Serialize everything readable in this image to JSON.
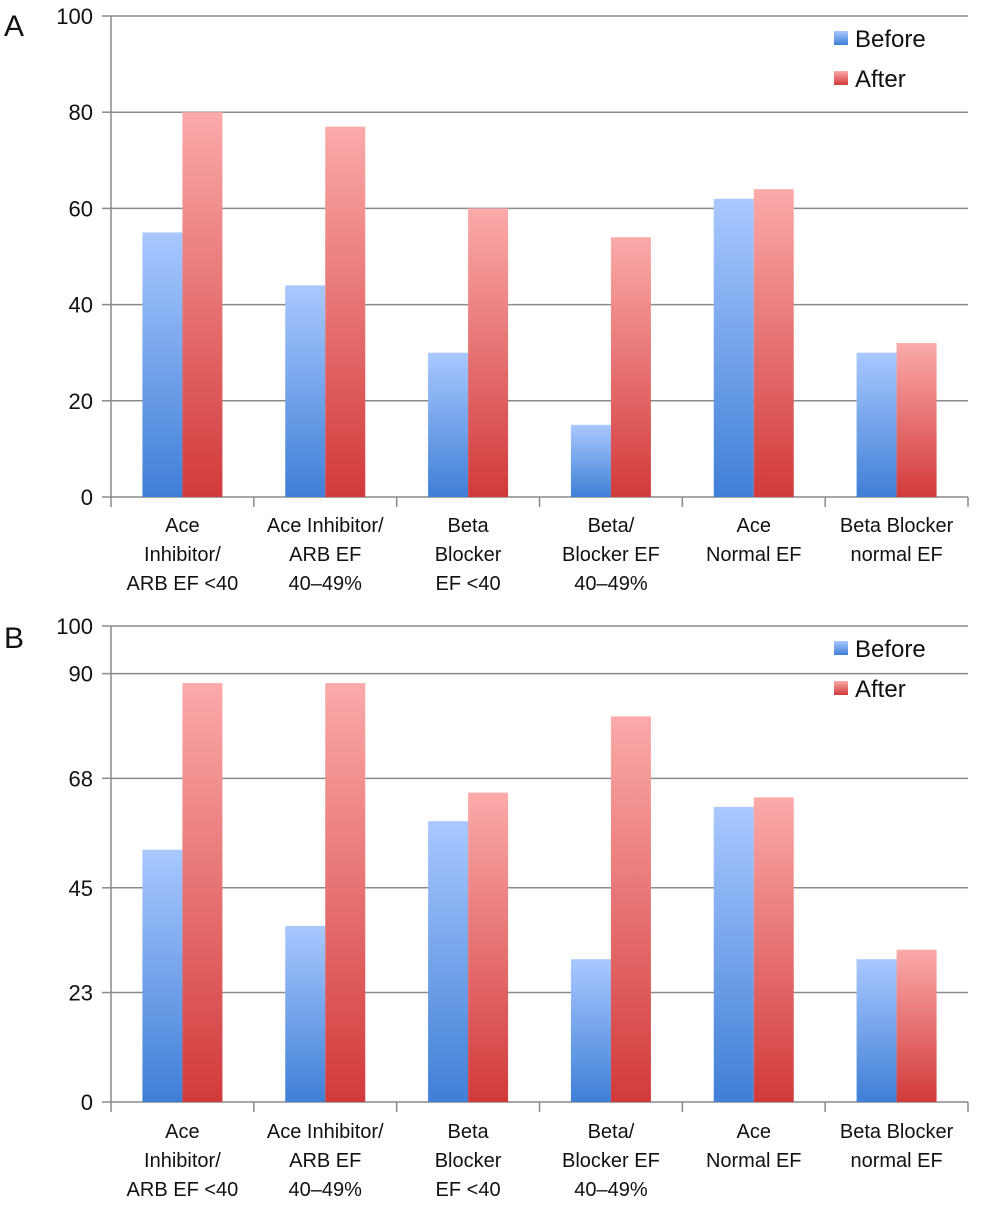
{
  "chart_data": [
    {
      "panel": "A",
      "type": "bar",
      "categories": [
        [
          "Ace",
          "Inhibitor/",
          "ARB EF <40"
        ],
        [
          "Ace Inhibitor/",
          "ARB EF",
          "40–49%"
        ],
        [
          "Beta",
          "Blocker",
          "EF <40"
        ],
        [
          "Beta/",
          "Blocker EF",
          "40–49%"
        ],
        [
          "Ace",
          "Normal EF"
        ],
        [
          "Beta Blocker",
          "normal EF"
        ]
      ],
      "yticks": [
        "0",
        "20",
        "40",
        "60",
        "80",
        "100"
      ],
      "ylim": [
        0,
        100
      ],
      "series": [
        {
          "name": "Before",
          "values": [
            55,
            44,
            30,
            15,
            62,
            30
          ]
        },
        {
          "name": "After",
          "values": [
            80,
            77,
            60,
            54,
            64,
            32
          ]
        }
      ],
      "legend_position": "top-right",
      "grid": true
    },
    {
      "panel": "B",
      "type": "bar",
      "categories": [
        [
          "Ace",
          "Inhibitor/",
          "ARB EF <40"
        ],
        [
          "Ace Inhibitor/",
          "ARB EF",
          "40–49%"
        ],
        [
          "Beta",
          "Blocker",
          "EF <40"
        ],
        [
          "Beta/",
          "Blocker EF",
          "40–49%"
        ],
        [
          "Ace",
          "Normal EF"
        ],
        [
          "Beta Blocker",
          "normal EF"
        ]
      ],
      "yticks": [
        "0",
        "23",
        "45",
        "68",
        "90",
        "100"
      ],
      "ylim": [
        0,
        100
      ],
      "series": [
        {
          "name": "Before",
          "values": [
            53,
            37,
            59,
            30,
            62,
            30
          ]
        },
        {
          "name": "After",
          "values": [
            88,
            88,
            65,
            81,
            64,
            32
          ]
        }
      ],
      "legend_position": "top-right",
      "grid": true
    }
  ],
  "colors": {
    "before_top": "#a9c8ff",
    "before_bottom": "#3f7fd6",
    "after_top": "#fbaaaa",
    "after_bottom": "#d23a3a",
    "grid": "#8a8a8a",
    "axis": "#8a8a8a"
  }
}
